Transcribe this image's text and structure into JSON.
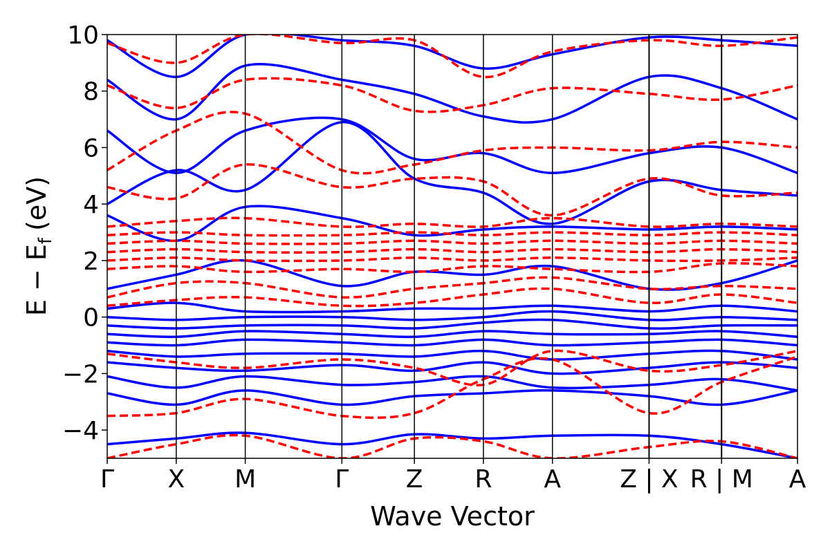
{
  "chart_data": {
    "type": "line",
    "title": "",
    "xlabel": "Wave Vector",
    "ylabel": "E − E",
    "ylabel_subscript": "f",
    "ylabel_unit": "(eV)",
    "ylim": [
      -5,
      10
    ],
    "y_ticks": [
      -4,
      -2,
      0,
      2,
      4,
      6,
      8,
      10
    ],
    "y_tick_labels": [
      "−4",
      "−2",
      "0",
      "2",
      "4",
      "6",
      "8",
      "10"
    ],
    "x_range": [
      0,
      10.0
    ],
    "k_path_positions": [
      0,
      1.0,
      2.0,
      3.4,
      4.45,
      5.45,
      6.45,
      7.85,
      8.9,
      10.0
    ],
    "k_path_labels": [
      "Γ",
      "X",
      "M",
      "Γ",
      "Z",
      "R",
      "A",
      "Z | X",
      "R | M",
      "A"
    ],
    "grid": false,
    "legend": "none",
    "series_styles": {
      "solid": {
        "color": "#0000ff",
        "dash": "solid"
      },
      "dashed": {
        "color": "#ff0000",
        "dash": "dashed"
      }
    },
    "series": [
      {
        "style": "solid",
        "x": [
          0,
          1,
          2,
          3.4,
          4.45,
          5.45,
          6.45,
          7.85,
          8.9,
          10
        ],
        "y": [
          -4.5,
          -4.3,
          -4.1,
          -4.5,
          -4.15,
          -4.3,
          -4.2,
          -4.2,
          -4.5,
          -5.0
        ]
      },
      {
        "style": "solid",
        "x": [
          0,
          1,
          2,
          3.4,
          4.45,
          5.45,
          6.45,
          7.85,
          8.9,
          10
        ],
        "y": [
          -2.7,
          -3.1,
          -2.6,
          -3.1,
          -2.8,
          -2.7,
          -2.6,
          -2.8,
          -3.1,
          -2.6
        ]
      },
      {
        "style": "solid",
        "x": [
          0,
          1,
          2,
          3.4,
          4.45,
          5.45,
          6.45,
          7.85,
          8.9,
          10
        ],
        "y": [
          -2.1,
          -2.5,
          -2.1,
          -2.4,
          -2.3,
          -2.1,
          -2.5,
          -2.4,
          -2.2,
          -2.6
        ]
      },
      {
        "style": "solid",
        "x": [
          0,
          1,
          2,
          3.4,
          4.45,
          5.45,
          6.45,
          7.85,
          8.9,
          10
        ],
        "y": [
          -1.6,
          -1.8,
          -1.9,
          -1.7,
          -1.9,
          -1.6,
          -2.0,
          -1.8,
          -1.6,
          -1.8
        ]
      },
      {
        "style": "solid",
        "x": [
          0,
          1,
          2,
          3.4,
          4.45,
          5.45,
          6.45,
          7.85,
          8.9,
          10
        ],
        "y": [
          -1.2,
          -1.4,
          -1.3,
          -1.3,
          -1.4,
          -1.2,
          -1.5,
          -1.3,
          -1.2,
          -1.5
        ]
      },
      {
        "style": "solid",
        "x": [
          0,
          1,
          2,
          3.4,
          4.45,
          5.45,
          6.45,
          7.85,
          8.9,
          10
        ],
        "y": [
          -0.9,
          -1.0,
          -0.8,
          -0.9,
          -1.0,
          -0.8,
          -1.0,
          -0.9,
          -0.8,
          -1.0
        ]
      },
      {
        "style": "solid",
        "x": [
          0,
          1,
          2,
          3.4,
          4.45,
          5.45,
          6.45,
          7.85,
          8.9,
          10
        ],
        "y": [
          -0.6,
          -0.7,
          -0.5,
          -0.6,
          -0.7,
          -0.5,
          -0.6,
          -0.6,
          -0.5,
          -0.7
        ]
      },
      {
        "style": "solid",
        "x": [
          0,
          1,
          2,
          3.4,
          4.45,
          5.45,
          6.45,
          7.85,
          8.9,
          10
        ],
        "y": [
          -0.3,
          -0.4,
          -0.3,
          -0.3,
          -0.4,
          -0.2,
          -0.1,
          -0.4,
          -0.3,
          -0.3
        ]
      },
      {
        "style": "solid",
        "x": [
          0,
          1,
          2,
          3.4,
          4.45,
          5.45,
          6.45,
          7.85,
          8.9,
          10
        ],
        "y": [
          0.0,
          -0.1,
          0.0,
          0.0,
          -0.1,
          0.0,
          0.2,
          -0.1,
          0.0,
          -0.1
        ]
      },
      {
        "style": "solid",
        "x": [
          0,
          1,
          2,
          3.4,
          4.45,
          5.45,
          6.45,
          7.85,
          8.9,
          10
        ],
        "y": [
          0.3,
          0.5,
          0.2,
          0.2,
          0.3,
          0.3,
          0.4,
          0.2,
          0.4,
          0.2
        ]
      },
      {
        "style": "solid",
        "x": [
          0,
          1,
          2,
          3.4,
          4.45,
          5.45,
          6.45,
          7.85,
          8.9,
          10
        ],
        "y": [
          1.0,
          1.5,
          2.0,
          1.1,
          1.6,
          1.5,
          1.8,
          1.0,
          1.2,
          2.0
        ]
      },
      {
        "style": "solid",
        "x": [
          0,
          1,
          2,
          3.4,
          4.45,
          5.45,
          6.45,
          7.85,
          8.9,
          10
        ],
        "y": [
          3.6,
          2.7,
          3.9,
          3.5,
          2.9,
          3.1,
          3.2,
          3.1,
          3.2,
          3.1
        ]
      },
      {
        "style": "solid",
        "x": [
          0,
          1,
          2,
          3.4,
          4.45,
          5.45,
          6.45,
          7.85,
          8.9,
          10
        ],
        "y": [
          4.0,
          5.2,
          4.5,
          6.9,
          4.9,
          4.4,
          3.3,
          4.8,
          4.5,
          4.3
        ]
      },
      {
        "style": "solid",
        "x": [
          0,
          1,
          2,
          3.4,
          4.45,
          5.45,
          6.45,
          7.85,
          8.9,
          10
        ],
        "y": [
          6.6,
          5.1,
          6.6,
          7.0,
          5.6,
          5.8,
          5.1,
          5.8,
          6.0,
          5.1
        ]
      },
      {
        "style": "solid",
        "x": [
          0,
          1,
          2,
          3.4,
          4.45,
          5.45,
          6.45,
          7.85,
          8.9,
          10
        ],
        "y": [
          8.4,
          7.0,
          8.9,
          8.4,
          7.9,
          7.1,
          7.0,
          8.5,
          8.1,
          7.0
        ]
      },
      {
        "style": "solid",
        "x": [
          0,
          1,
          2,
          3.4,
          4.45,
          5.45,
          6.45,
          7.85,
          8.9,
          10
        ],
        "y": [
          9.8,
          8.5,
          10.0,
          9.8,
          9.6,
          8.8,
          9.3,
          9.9,
          9.8,
          9.6
        ]
      },
      {
        "style": "dashed",
        "x": [
          0,
          1,
          2,
          3.4,
          4.45,
          5.45,
          6.45,
          7.85,
          8.9,
          10
        ],
        "y": [
          -3.5,
          -3.4,
          -2.9,
          -3.5,
          -3.4,
          -2.2,
          -1.5,
          -3.4,
          -2.3,
          -1.4
        ]
      },
      {
        "style": "dashed",
        "x": [
          0,
          1,
          2,
          3.4,
          4.45,
          5.45,
          6.45,
          7.85,
          8.9,
          10
        ],
        "y": [
          -1.3,
          -1.6,
          -1.8,
          -1.5,
          -1.8,
          -2.4,
          -1.2,
          -1.9,
          -1.7,
          -1.2
        ]
      },
      {
        "style": "dashed",
        "x": [
          0,
          1,
          2,
          3.4,
          4.45,
          5.45,
          6.45,
          7.85,
          8.9,
          10
        ],
        "y": [
          0.4,
          0.6,
          0.7,
          0.4,
          0.5,
          0.8,
          1.0,
          0.5,
          0.8,
          0.5
        ]
      },
      {
        "style": "dashed",
        "x": [
          0,
          1,
          2,
          3.4,
          4.45,
          5.45,
          6.45,
          7.85,
          8.9,
          10
        ],
        "y": [
          0.7,
          1.2,
          1.2,
          0.7,
          1.0,
          1.2,
          1.4,
          1.0,
          1.1,
          1.0
        ]
      },
      {
        "style": "dashed",
        "x": [
          0,
          1,
          2,
          3.4,
          4.45,
          5.45,
          6.45,
          7.85,
          8.9,
          10
        ],
        "y": [
          1.7,
          1.8,
          1.6,
          1.7,
          1.6,
          1.8,
          1.7,
          1.6,
          1.9,
          1.8
        ]
      },
      {
        "style": "dashed",
        "x": [
          0,
          1,
          2,
          3.4,
          4.45,
          5.45,
          6.45,
          7.85,
          8.9,
          10
        ],
        "y": [
          2.0,
          2.1,
          2.0,
          2.0,
          2.1,
          2.0,
          2.1,
          2.0,
          2.0,
          2.1
        ]
      },
      {
        "style": "dashed",
        "x": [
          0,
          1,
          2,
          3.4,
          4.45,
          5.45,
          6.45,
          7.85,
          8.9,
          10
        ],
        "y": [
          2.3,
          2.4,
          2.3,
          2.3,
          2.4,
          2.3,
          2.4,
          2.3,
          2.4,
          2.3
        ]
      },
      {
        "style": "dashed",
        "x": [
          0,
          1,
          2,
          3.4,
          4.45,
          5.45,
          6.45,
          7.85,
          8.9,
          10
        ],
        "y": [
          2.6,
          2.7,
          2.6,
          2.6,
          2.7,
          2.6,
          2.7,
          2.6,
          2.7,
          2.6
        ]
      },
      {
        "style": "dashed",
        "x": [
          0,
          1,
          2,
          3.4,
          4.45,
          5.45,
          6.45,
          7.85,
          8.9,
          10
        ],
        "y": [
          2.9,
          3.0,
          2.9,
          2.9,
          3.0,
          2.9,
          3.0,
          2.9,
          3.0,
          2.9
        ]
      },
      {
        "style": "dashed",
        "x": [
          0,
          1,
          2,
          3.4,
          4.45,
          5.45,
          6.45,
          7.85,
          8.9,
          10
        ],
        "y": [
          3.2,
          3.4,
          3.5,
          3.2,
          3.3,
          3.2,
          3.5,
          3.2,
          3.3,
          3.2
        ]
      },
      {
        "style": "dashed",
        "x": [
          0,
          1,
          2,
          3.4,
          4.45,
          5.45,
          6.45,
          7.85,
          8.9,
          10
        ],
        "y": [
          4.6,
          4.2,
          5.4,
          4.6,
          4.9,
          4.8,
          3.6,
          4.9,
          4.3,
          4.4
        ]
      },
      {
        "style": "dashed",
        "x": [
          0,
          1,
          2,
          3.4,
          4.45,
          5.45,
          6.45,
          7.85,
          8.9,
          10
        ],
        "y": [
          5.2,
          6.6,
          7.2,
          5.2,
          5.4,
          5.9,
          6.0,
          5.9,
          6.2,
          6.0
        ]
      },
      {
        "style": "dashed",
        "x": [
          0,
          1,
          2,
          3.4,
          4.45,
          5.45,
          6.45,
          7.85,
          8.9,
          10
        ],
        "y": [
          8.2,
          7.4,
          8.4,
          8.2,
          7.3,
          7.5,
          8.1,
          7.9,
          7.7,
          8.2
        ]
      },
      {
        "style": "dashed",
        "x": [
          0,
          1,
          2,
          3.4,
          4.45,
          5.45,
          6.45,
          7.85,
          8.9,
          10
        ],
        "y": [
          9.7,
          9.0,
          10.0,
          9.7,
          9.8,
          8.5,
          9.4,
          9.8,
          9.6,
          9.9
        ]
      },
      {
        "style": "dashed",
        "x": [
          0,
          1,
          2,
          3.4,
          4.45,
          5.45,
          6.45,
          7.85,
          8.9,
          10
        ],
        "y": [
          -5.0,
          -4.5,
          -4.2,
          -5.0,
          -4.3,
          -4.4,
          -5.0,
          -4.6,
          -4.4,
          -5.0
        ]
      }
    ]
  }
}
